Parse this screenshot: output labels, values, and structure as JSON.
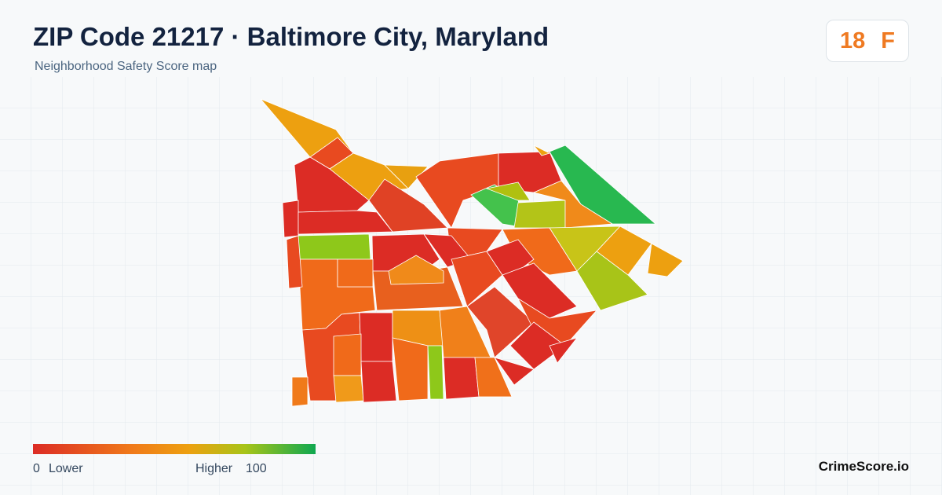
{
  "header": {
    "title": "ZIP Code 21217 · Baltimore City, Maryland",
    "subtitle": "Neighborhood Safety Score map"
  },
  "score": {
    "value": "18",
    "grade": "F"
  },
  "legend": {
    "min": "0",
    "min_label": "Lower",
    "max_label": "Higher",
    "max": "100"
  },
  "brand": "CrimeScore.io"
}
